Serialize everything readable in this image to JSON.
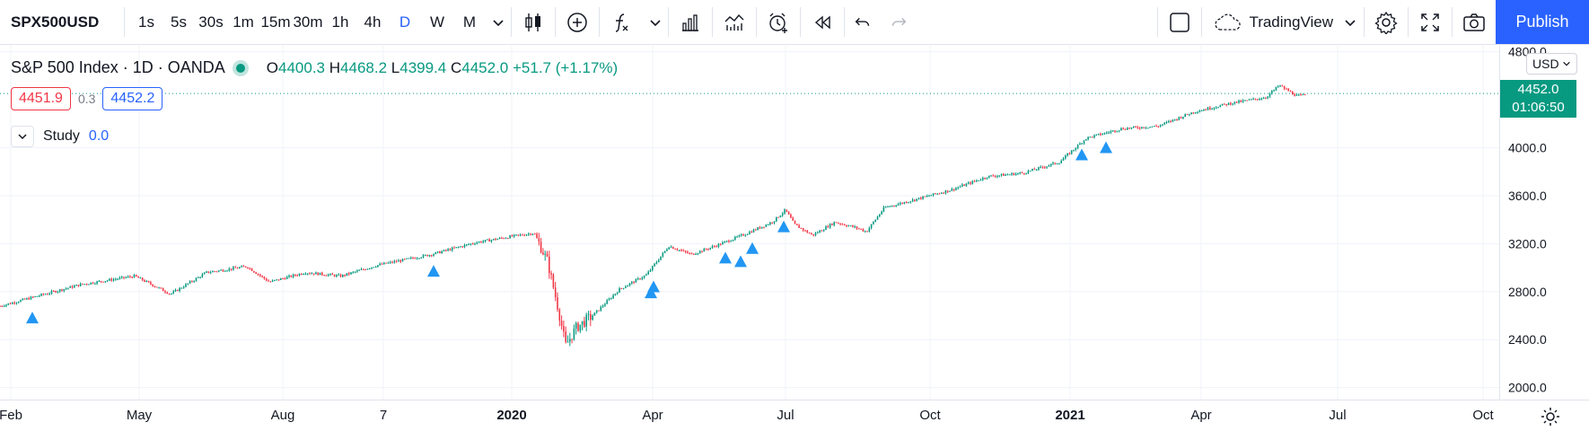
{
  "toolbar": {
    "symbol": "SPX500USD",
    "intervals": [
      {
        "label": "1s",
        "active": false
      },
      {
        "label": "5s",
        "active": false
      },
      {
        "label": "30s",
        "active": false
      },
      {
        "label": "1m",
        "active": false
      },
      {
        "label": "15m",
        "active": false
      },
      {
        "label": "30m",
        "active": false
      },
      {
        "label": "1h",
        "active": false
      },
      {
        "label": "4h",
        "active": false
      },
      {
        "label": "D",
        "active": true
      },
      {
        "label": "W",
        "active": false
      },
      {
        "label": "M",
        "active": false
      }
    ],
    "layout_name": "TradingView",
    "publish_label": "Publish"
  },
  "legend": {
    "title": "S&P 500 Index · 1D · OANDA",
    "o_key": "O",
    "o_val": "4400.3",
    "h_key": "H",
    "h_val": "4468.2",
    "l_key": "L",
    "l_val": "4399.4",
    "c_key": "C",
    "c_val": "4452.0",
    "change": "+51.7 (+1.17%)",
    "bid": "4451.9",
    "spread": "0.3",
    "ask": "4452.2"
  },
  "study": {
    "name": "Study",
    "value": "0.0"
  },
  "price_axis": {
    "currency": "USD",
    "labels": [
      "4800.0",
      "4000.0",
      "3600.0",
      "3200.0",
      "2800.0",
      "2400.0",
      "2000.0"
    ],
    "current_price": "4452.0",
    "countdown": "01:06:50"
  },
  "time_axis": {
    "labels": [
      "Feb",
      "May",
      "Aug",
      "7",
      "2020",
      "Apr",
      "Jul",
      "Oct",
      "2021",
      "Apr",
      "Jul",
      "Oct"
    ],
    "bold": [
      false,
      false,
      false,
      false,
      true,
      false,
      false,
      false,
      true,
      false,
      false,
      false
    ]
  },
  "colors": {
    "up": "#089981",
    "down": "#f23645",
    "accent": "#2962ff",
    "marker": "#2196f3"
  },
  "chart_data": {
    "type": "candlestick",
    "ylim": [
      1900,
      4850
    ],
    "closes_anchor": [
      [
        0,
        2680
      ],
      [
        40,
        2760
      ],
      [
        90,
        2860
      ],
      [
        150,
        2930
      ],
      [
        190,
        2780
      ],
      [
        230,
        2960
      ],
      [
        275,
        3010
      ],
      [
        300,
        2880
      ],
      [
        340,
        2960
      ],
      [
        380,
        2930
      ],
      [
        420,
        3020
      ],
      [
        480,
        3110
      ],
      [
        530,
        3210
      ],
      [
        570,
        3260
      ],
      [
        595,
        3290
      ],
      [
        610,
        3050
      ],
      [
        622,
        2650
      ],
      [
        630,
        2350
      ],
      [
        642,
        2500
      ],
      [
        660,
        2600
      ],
      [
        690,
        2820
      ],
      [
        720,
        2940
      ],
      [
        745,
        3180
      ],
      [
        770,
        3110
      ],
      [
        800,
        3190
      ],
      [
        830,
        3280
      ],
      [
        860,
        3380
      ],
      [
        875,
        3480
      ],
      [
        885,
        3360
      ],
      [
        905,
        3270
      ],
      [
        930,
        3380
      ],
      [
        955,
        3330
      ],
      [
        965,
        3300
      ],
      [
        985,
        3500
      ],
      [
        1020,
        3570
      ],
      [
        1060,
        3650
      ],
      [
        1100,
        3760
      ],
      [
        1140,
        3790
      ],
      [
        1180,
        3880
      ],
      [
        1210,
        4080
      ],
      [
        1250,
        4160
      ],
      [
        1290,
        4180
      ],
      [
        1330,
        4300
      ],
      [
        1370,
        4370
      ],
      [
        1410,
        4420
      ],
      [
        1425,
        4520
      ],
      [
        1445,
        4430
      ],
      [
        1455,
        4440
      ]
    ],
    "markers": [
      {
        "i": 36,
        "price": 2580
      },
      {
        "i": 483,
        "price": 2970
      },
      {
        "i": 725,
        "price": 2790
      },
      {
        "i": 728,
        "price": 2840
      },
      {
        "i": 808,
        "price": 3080
      },
      {
        "i": 825,
        "price": 3050
      },
      {
        "i": 838,
        "price": 3160
      },
      {
        "i": 873,
        "price": 3340
      },
      {
        "i": 1205,
        "price": 3940
      },
      {
        "i": 1232,
        "price": 4000
      }
    ]
  }
}
